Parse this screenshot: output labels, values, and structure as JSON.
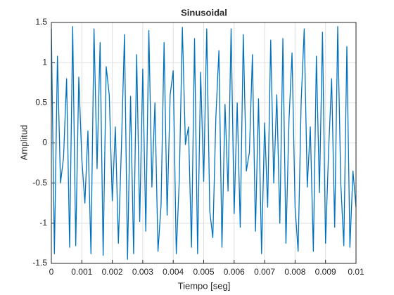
{
  "chart_data": {
    "type": "line",
    "title": "Sinusoidal",
    "xlabel": "Tiempo [seg]",
    "ylabel": "Amplitud",
    "x": [
      0,
      0.0001,
      0.0002,
      0.0003,
      0.0004,
      0.0005,
      0.0006,
      0.0007,
      0.0008,
      0.0009,
      0.001,
      0.0011,
      0.0012,
      0.0013,
      0.0014,
      0.0015,
      0.0016,
      0.0017,
      0.0018,
      0.0019,
      0.002,
      0.0021,
      0.0022,
      0.0023,
      0.0024,
      0.0025,
      0.0026,
      0.0027,
      0.0028,
      0.0029,
      0.003,
      0.0031,
      0.0032,
      0.0033,
      0.0034,
      0.0035,
      0.0036,
      0.0037,
      0.0038,
      0.0039,
      0.004,
      0.0041,
      0.0042,
      0.0043,
      0.0044,
      0.0045,
      0.0046,
      0.0047,
      0.0048,
      0.0049,
      0.005,
      0.0051,
      0.0052,
      0.0053,
      0.0054,
      0.0055,
      0.0056,
      0.0057,
      0.0058,
      0.0059,
      0.006,
      0.0061,
      0.0062,
      0.0063,
      0.0064,
      0.0065,
      0.0066,
      0.0067,
      0.0068,
      0.0069,
      0.007,
      0.0071,
      0.0072,
      0.0073,
      0.0074,
      0.0075,
      0.0076,
      0.0077,
      0.0078,
      0.0079,
      0.008,
      0.0081,
      0.0082,
      0.0083,
      0.0084,
      0.0085,
      0.0086,
      0.0087,
      0.0088,
      0.0089,
      0.009,
      0.0091,
      0.0092,
      0.0093,
      0.0094,
      0.0095,
      0.0096,
      0.0097,
      0.0098,
      0.0099,
      0.01
    ],
    "series": [
      {
        "color": "#0072bd",
        "values": [
          1.42,
          -1.38,
          1.08,
          -0.5,
          -0.18,
          0.8,
          -1.3,
          1.45,
          -1.28,
          0.82,
          -0.2,
          -0.75,
          0.15,
          -1.38,
          1.42,
          -0.32,
          1.25,
          -1.4,
          0.95,
          0.6,
          -0.72,
          0.2,
          -1.25,
          -0.05,
          1.35,
          -1.45,
          0.58,
          -1.38,
          1.1,
          -0.98,
          0.92,
          -1.1,
          1.4,
          -0.55,
          0.5,
          -1.35,
          -0.78,
          1.25,
          -0.9,
          0.6,
          0.9,
          -1.38,
          -0.45,
          1.44,
          -0.02,
          0.2,
          -1.3,
          1.3,
          -1.38,
          0.88,
          -0.48,
          1.42,
          -0.85,
          -1.18,
          0.32,
          1.15,
          -1.3,
          0.48,
          -0.6,
          1.42,
          -0.88,
          0.5,
          -1.05,
          1.35,
          -0.35,
          -0.12,
          1.1,
          -1.1,
          0.55,
          -1.38,
          0.25,
          -0.8,
          1.28,
          -0.5,
          0.6,
          -1.0,
          1.3,
          -1.25,
          0.28,
          1.12,
          -0.8,
          -1.35,
          0.52,
          1.42,
          -0.55,
          0.2,
          -1.35,
          1.08,
          -0.62,
          1.38,
          -1.25,
          -0.1,
          0.8,
          -1.05,
          1.45,
          -0.5,
          -1.28,
          1.2,
          -1.3,
          -0.35,
          -0.8
        ]
      }
    ],
    "xlim": [
      0,
      0.01
    ],
    "xticks": [
      0,
      0.001,
      0.002,
      0.003,
      0.004,
      0.005,
      0.006,
      0.007,
      0.008,
      0.009,
      0.01
    ],
    "ylim": [
      -1.5,
      1.5
    ],
    "yticks": [
      -1.5,
      -1,
      -0.5,
      0,
      0.5,
      1,
      1.5
    ],
    "grid": true
  }
}
